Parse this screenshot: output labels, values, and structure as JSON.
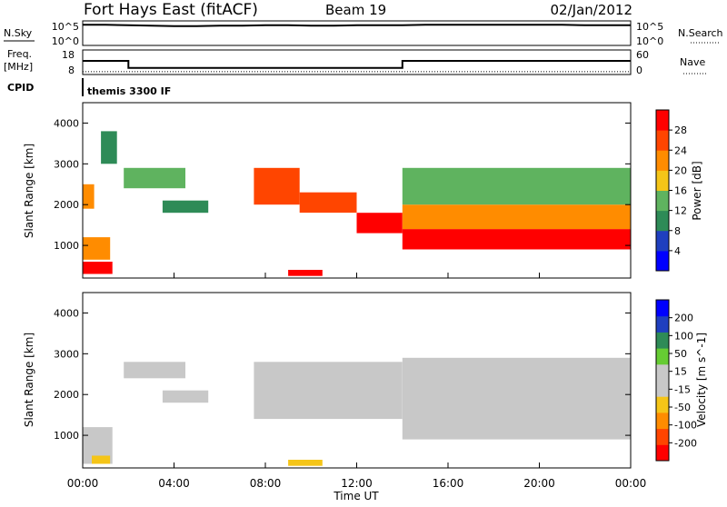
{
  "header": {
    "station": "Fort Hays East (fitACF)",
    "beam": "Beam 19",
    "date": "02/Jan/2012"
  },
  "colors": {
    "power_scale": [
      "#0000ff",
      "#1f3fbf",
      "#2e8b57",
      "#5fb35f",
      "#f5c518",
      "#ff8c00",
      "#ff4500",
      "#ff0000"
    ],
    "velocity_scale": [
      "#ff0000",
      "#ff4500",
      "#ff8c00",
      "#f5c518",
      "#c8c8c8",
      "#c8c8c8",
      "#66cc33",
      "#2e8b57",
      "#1f3fbf",
      "#0000ff"
    ]
  },
  "chart_data": [
    {
      "type": "line",
      "panel": "noise",
      "left_label": "N.Sky",
      "left_ticks": [
        "10^5",
        "10^0"
      ],
      "right_label": "N.Search",
      "right_ticks": [
        "10^5",
        "10^0"
      ],
      "x": [
        0,
        1,
        2,
        3,
        4,
        5,
        6,
        7,
        8,
        9,
        10,
        11,
        12,
        13,
        14,
        15,
        16,
        17,
        18,
        19,
        20,
        21,
        22,
        23,
        24
      ],
      "series": [
        {
          "values": [
            4.5,
            4.5,
            4.4,
            4.3,
            4.2,
            4.2,
            4.3,
            4.3,
            4.4,
            4.4,
            4.3,
            4.3,
            4.4,
            4.4,
            4.4,
            4.5,
            4.5,
            4.5,
            4.5,
            4.5,
            4.5,
            4.5,
            4.4,
            4.4,
            4.4
          ]
        }
      ]
    },
    {
      "type": "line",
      "panel": "frequency",
      "left_label": "Freq.",
      "left_unit": "[MHz]",
      "left_ticks": [
        "18",
        "8"
      ],
      "right_label": "Nave",
      "right_ticks": [
        "60",
        "0"
      ],
      "cpid_label": "CPID",
      "cpid_text": "themis 3300 IF",
      "x": [
        0,
        2,
        2,
        14,
        14,
        24
      ],
      "series": [
        {
          "values": [
            13.6,
            13.6,
            10.5,
            10.5,
            13.6,
            13.6
          ]
        },
        {
          "values": [
            5,
            5,
            5,
            5,
            5,
            5
          ]
        }
      ]
    },
    {
      "type": "heatmap",
      "panel": "power",
      "ylabel": "Slant Range [km]",
      "yticks": [
        1000,
        2000,
        3000,
        4000
      ],
      "ylim": [
        200,
        4500
      ],
      "colorbar_label": "Power [dB]",
      "colorbar_ticks": [
        "28",
        "24",
        "20",
        "16",
        "12",
        "8",
        "4"
      ],
      "colorbar_range": [
        0,
        32
      ],
      "regions": [
        {
          "t0": 0,
          "t1": 1.3,
          "r0": 300,
          "r1": 600,
          "value": 30
        },
        {
          "t0": 0,
          "t1": 1.2,
          "r0": 650,
          "r1": 1200,
          "value": 23
        },
        {
          "t0": 0,
          "t1": 0.5,
          "r0": 1900,
          "r1": 2500,
          "value": 20
        },
        {
          "t0": 1.8,
          "t1": 4.5,
          "r0": 2400,
          "r1": 2900,
          "value": 12
        },
        {
          "t0": 3.5,
          "t1": 5.5,
          "r0": 1800,
          "r1": 2100,
          "value": 10
        },
        {
          "t0": 7.5,
          "t1": 9.5,
          "r0": 2000,
          "r1": 2900,
          "value": 26
        },
        {
          "t0": 9.5,
          "t1": 12,
          "r0": 1800,
          "r1": 2300,
          "value": 26
        },
        {
          "t0": 12,
          "t1": 14,
          "r0": 1300,
          "r1": 1800,
          "value": 28
        },
        {
          "t0": 14,
          "t1": 24,
          "r0": 900,
          "r1": 1400,
          "value": 30
        },
        {
          "t0": 14,
          "t1": 24,
          "r0": 1400,
          "r1": 2000,
          "value": 22
        },
        {
          "t0": 14,
          "t1": 24,
          "r0": 2000,
          "r1": 2900,
          "value": 12
        },
        {
          "t0": 9,
          "t1": 10.5,
          "r0": 250,
          "r1": 400,
          "value": 30
        },
        {
          "t0": 0.8,
          "t1": 1.5,
          "r0": 3000,
          "r1": 3800,
          "value": 8
        }
      ]
    },
    {
      "type": "heatmap",
      "panel": "velocity",
      "ylabel": "Slant Range [km]",
      "yticks": [
        1000,
        2000,
        3000,
        4000
      ],
      "ylim": [
        200,
        4500
      ],
      "colorbar_label": "Velocity [m s^-1]",
      "colorbar_ticks": [
        "200",
        "100",
        "50",
        "15",
        "-15",
        "-50",
        "-100",
        "-200"
      ],
      "colorbar_range": [
        -250,
        250
      ],
      "regions": [
        {
          "t0": 0,
          "t1": 1.3,
          "r0": 300,
          "r1": 1200,
          "value": 0
        },
        {
          "t0": 0.4,
          "t1": 1.2,
          "r0": 300,
          "r1": 500,
          "value": -70
        },
        {
          "t0": 1.8,
          "t1": 4.5,
          "r0": 2400,
          "r1": 2800,
          "value": 0
        },
        {
          "t0": 3.5,
          "t1": 5.5,
          "r0": 1800,
          "r1": 2100,
          "value": 30
        },
        {
          "t0": 7.5,
          "t1": 14,
          "r0": 1400,
          "r1": 2800,
          "value": 0
        },
        {
          "t0": 14,
          "t1": 24,
          "r0": 900,
          "r1": 2900,
          "value": 0
        },
        {
          "t0": 9,
          "t1": 10.5,
          "r0": 250,
          "r1": 400,
          "value": -70
        }
      ],
      "xlabel": "Time UT",
      "xticks": [
        "00:00",
        "04:00",
        "08:00",
        "12:00",
        "16:00",
        "20:00",
        "00:00"
      ]
    }
  ]
}
